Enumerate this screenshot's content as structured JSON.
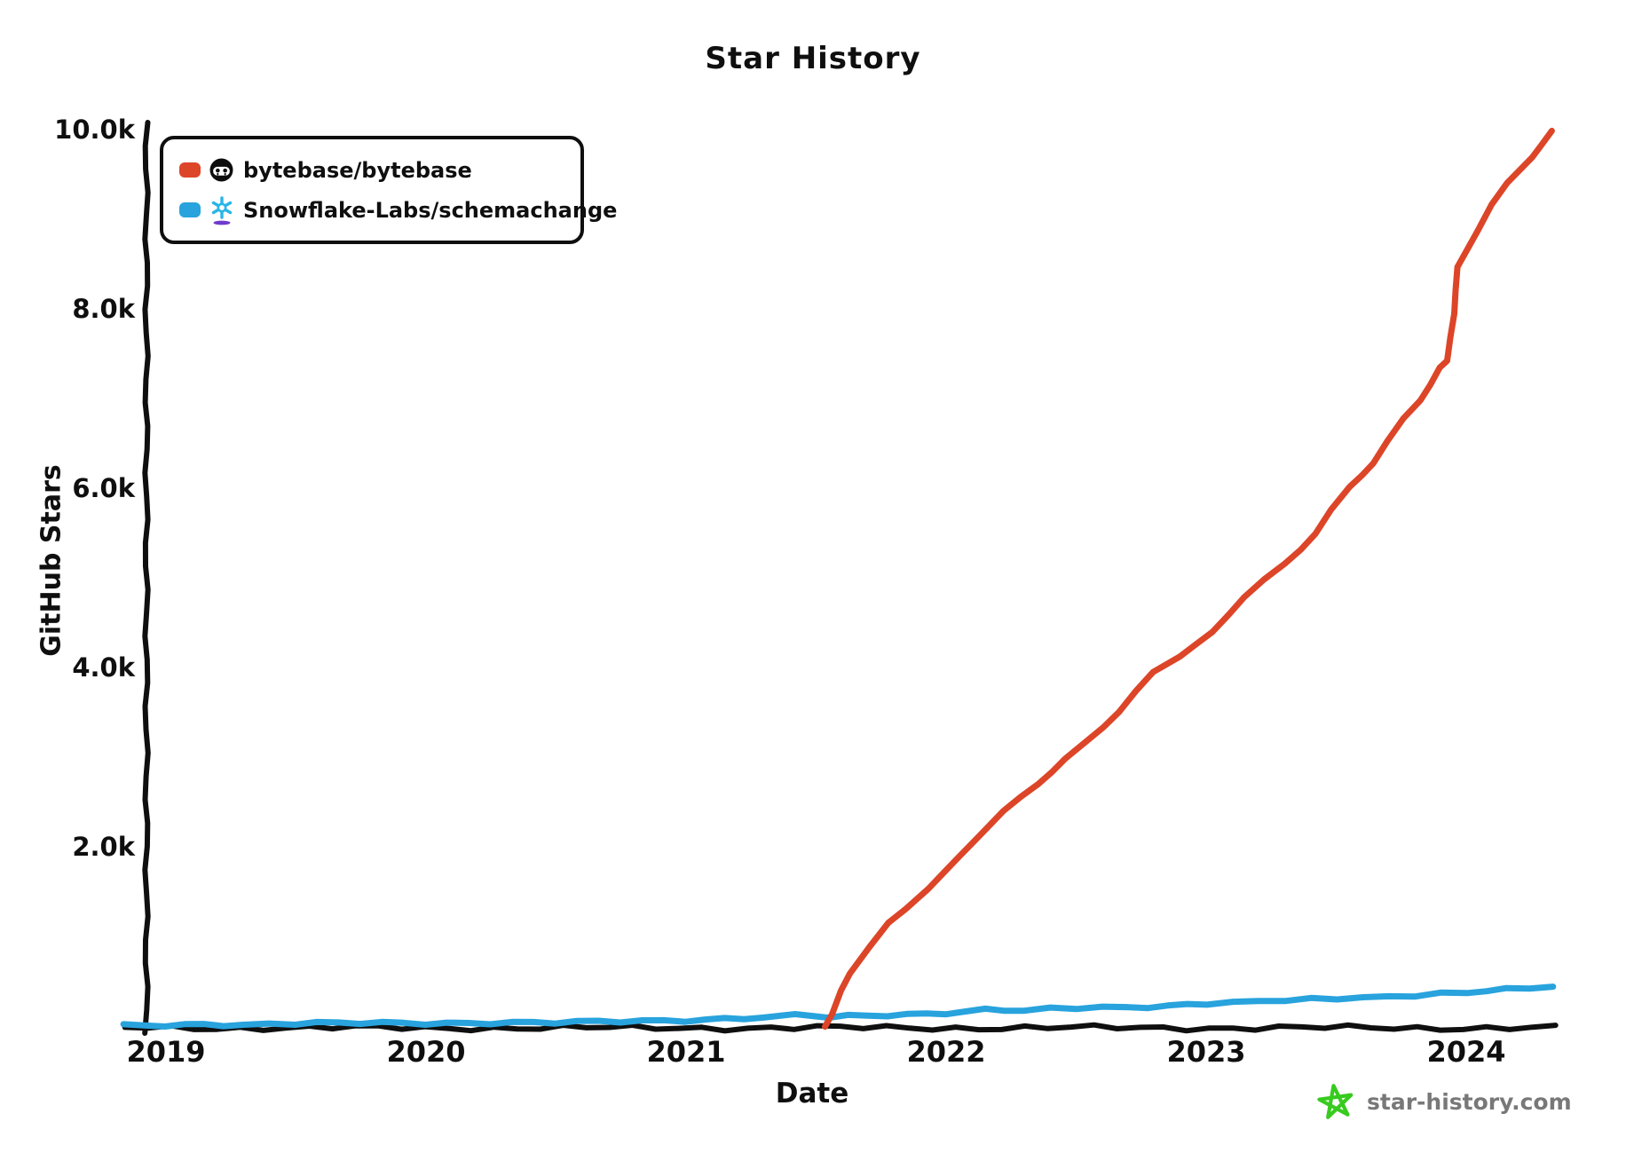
{
  "page": {
    "title": "Star History",
    "watermark": "star-history.com"
  },
  "colors": {
    "axis": "#0f0f0f",
    "footer_text": "#787878",
    "logo_green": "#38cb1f",
    "snowflake_blue": "#29b5e8",
    "snowflake_purple": "#6f3bcb",
    "bytebase_black": "#0d0d0d"
  },
  "chart_data": {
    "type": "line",
    "title": "Star History",
    "xlabel": "Date",
    "ylabel": "GitHub Stars",
    "grid": false,
    "legend_position": "top-left",
    "x_range": [
      2018.84,
      2024.38
    ],
    "y_range": [
      0,
      10000
    ],
    "x_ticks": [
      {
        "label": "2019",
        "value": 2019
      },
      {
        "label": "2020",
        "value": 2020
      },
      {
        "label": "2021",
        "value": 2021
      },
      {
        "label": "2022",
        "value": 2022
      },
      {
        "label": "2023",
        "value": 2023
      },
      {
        "label": "2024",
        "value": 2024
      }
    ],
    "y_ticks": [
      {
        "label": "2.0k",
        "value": 2000
      },
      {
        "label": "4.0k",
        "value": 4000
      },
      {
        "label": "6.0k",
        "value": 6000
      },
      {
        "label": "8.0k",
        "value": 8000
      },
      {
        "label": "10.0k",
        "value": 10000
      }
    ],
    "series": [
      {
        "name": "bytebase/bytebase",
        "color": "#dd4528",
        "icon": "bytebase-avatar",
        "points": [
          [
            2021.53,
            0
          ],
          [
            2021.56,
            150
          ],
          [
            2021.6,
            430
          ],
          [
            2021.63,
            620
          ],
          [
            2021.7,
            900
          ],
          [
            2021.78,
            1170
          ],
          [
            2021.85,
            1350
          ],
          [
            2021.93,
            1560
          ],
          [
            2022.0,
            1760
          ],
          [
            2022.1,
            2060
          ],
          [
            2022.22,
            2400
          ],
          [
            2022.35,
            2720
          ],
          [
            2022.46,
            2990
          ],
          [
            2022.55,
            3210
          ],
          [
            2022.66,
            3540
          ],
          [
            2022.8,
            3970
          ],
          [
            2022.9,
            4160
          ],
          [
            2023.02,
            4400
          ],
          [
            2023.15,
            4810
          ],
          [
            2023.3,
            5160
          ],
          [
            2023.42,
            5520
          ],
          [
            2023.55,
            6030
          ],
          [
            2023.64,
            6320
          ],
          [
            2023.76,
            6790
          ],
          [
            2023.82,
            7000
          ],
          [
            2023.9,
            7380
          ],
          [
            2023.93,
            7450
          ],
          [
            2023.97,
            8480
          ],
          [
            2024.04,
            8870
          ],
          [
            2024.1,
            9180
          ],
          [
            2024.16,
            9430
          ],
          [
            2024.25,
            9690
          ],
          [
            2024.33,
            10000
          ]
        ]
      },
      {
        "name": "Snowflake-Labs/schemachange",
        "color": "#28a3dd",
        "icon": "snowflake-avatar",
        "points": [
          [
            2018.84,
            20
          ],
          [
            2019.0,
            30
          ],
          [
            2019.15,
            45
          ],
          [
            2019.3,
            40
          ],
          [
            2019.5,
            45
          ],
          [
            2019.75,
            50
          ],
          [
            2020.0,
            55
          ],
          [
            2020.25,
            60
          ],
          [
            2020.5,
            55
          ],
          [
            2020.75,
            70
          ],
          [
            2021.0,
            90
          ],
          [
            2021.15,
            105
          ],
          [
            2021.3,
            120
          ],
          [
            2021.42,
            140
          ],
          [
            2021.55,
            110
          ],
          [
            2021.7,
            135
          ],
          [
            2021.85,
            150
          ],
          [
            2022.0,
            175
          ],
          [
            2022.15,
            205
          ],
          [
            2022.3,
            195
          ],
          [
            2022.5,
            215
          ],
          [
            2022.7,
            230
          ],
          [
            2022.85,
            250
          ],
          [
            2023.0,
            280
          ],
          [
            2023.2,
            295
          ],
          [
            2023.4,
            310
          ],
          [
            2023.6,
            335
          ],
          [
            2023.8,
            370
          ],
          [
            2024.0,
            405
          ],
          [
            2024.15,
            425
          ],
          [
            2024.33,
            455
          ]
        ]
      }
    ]
  }
}
